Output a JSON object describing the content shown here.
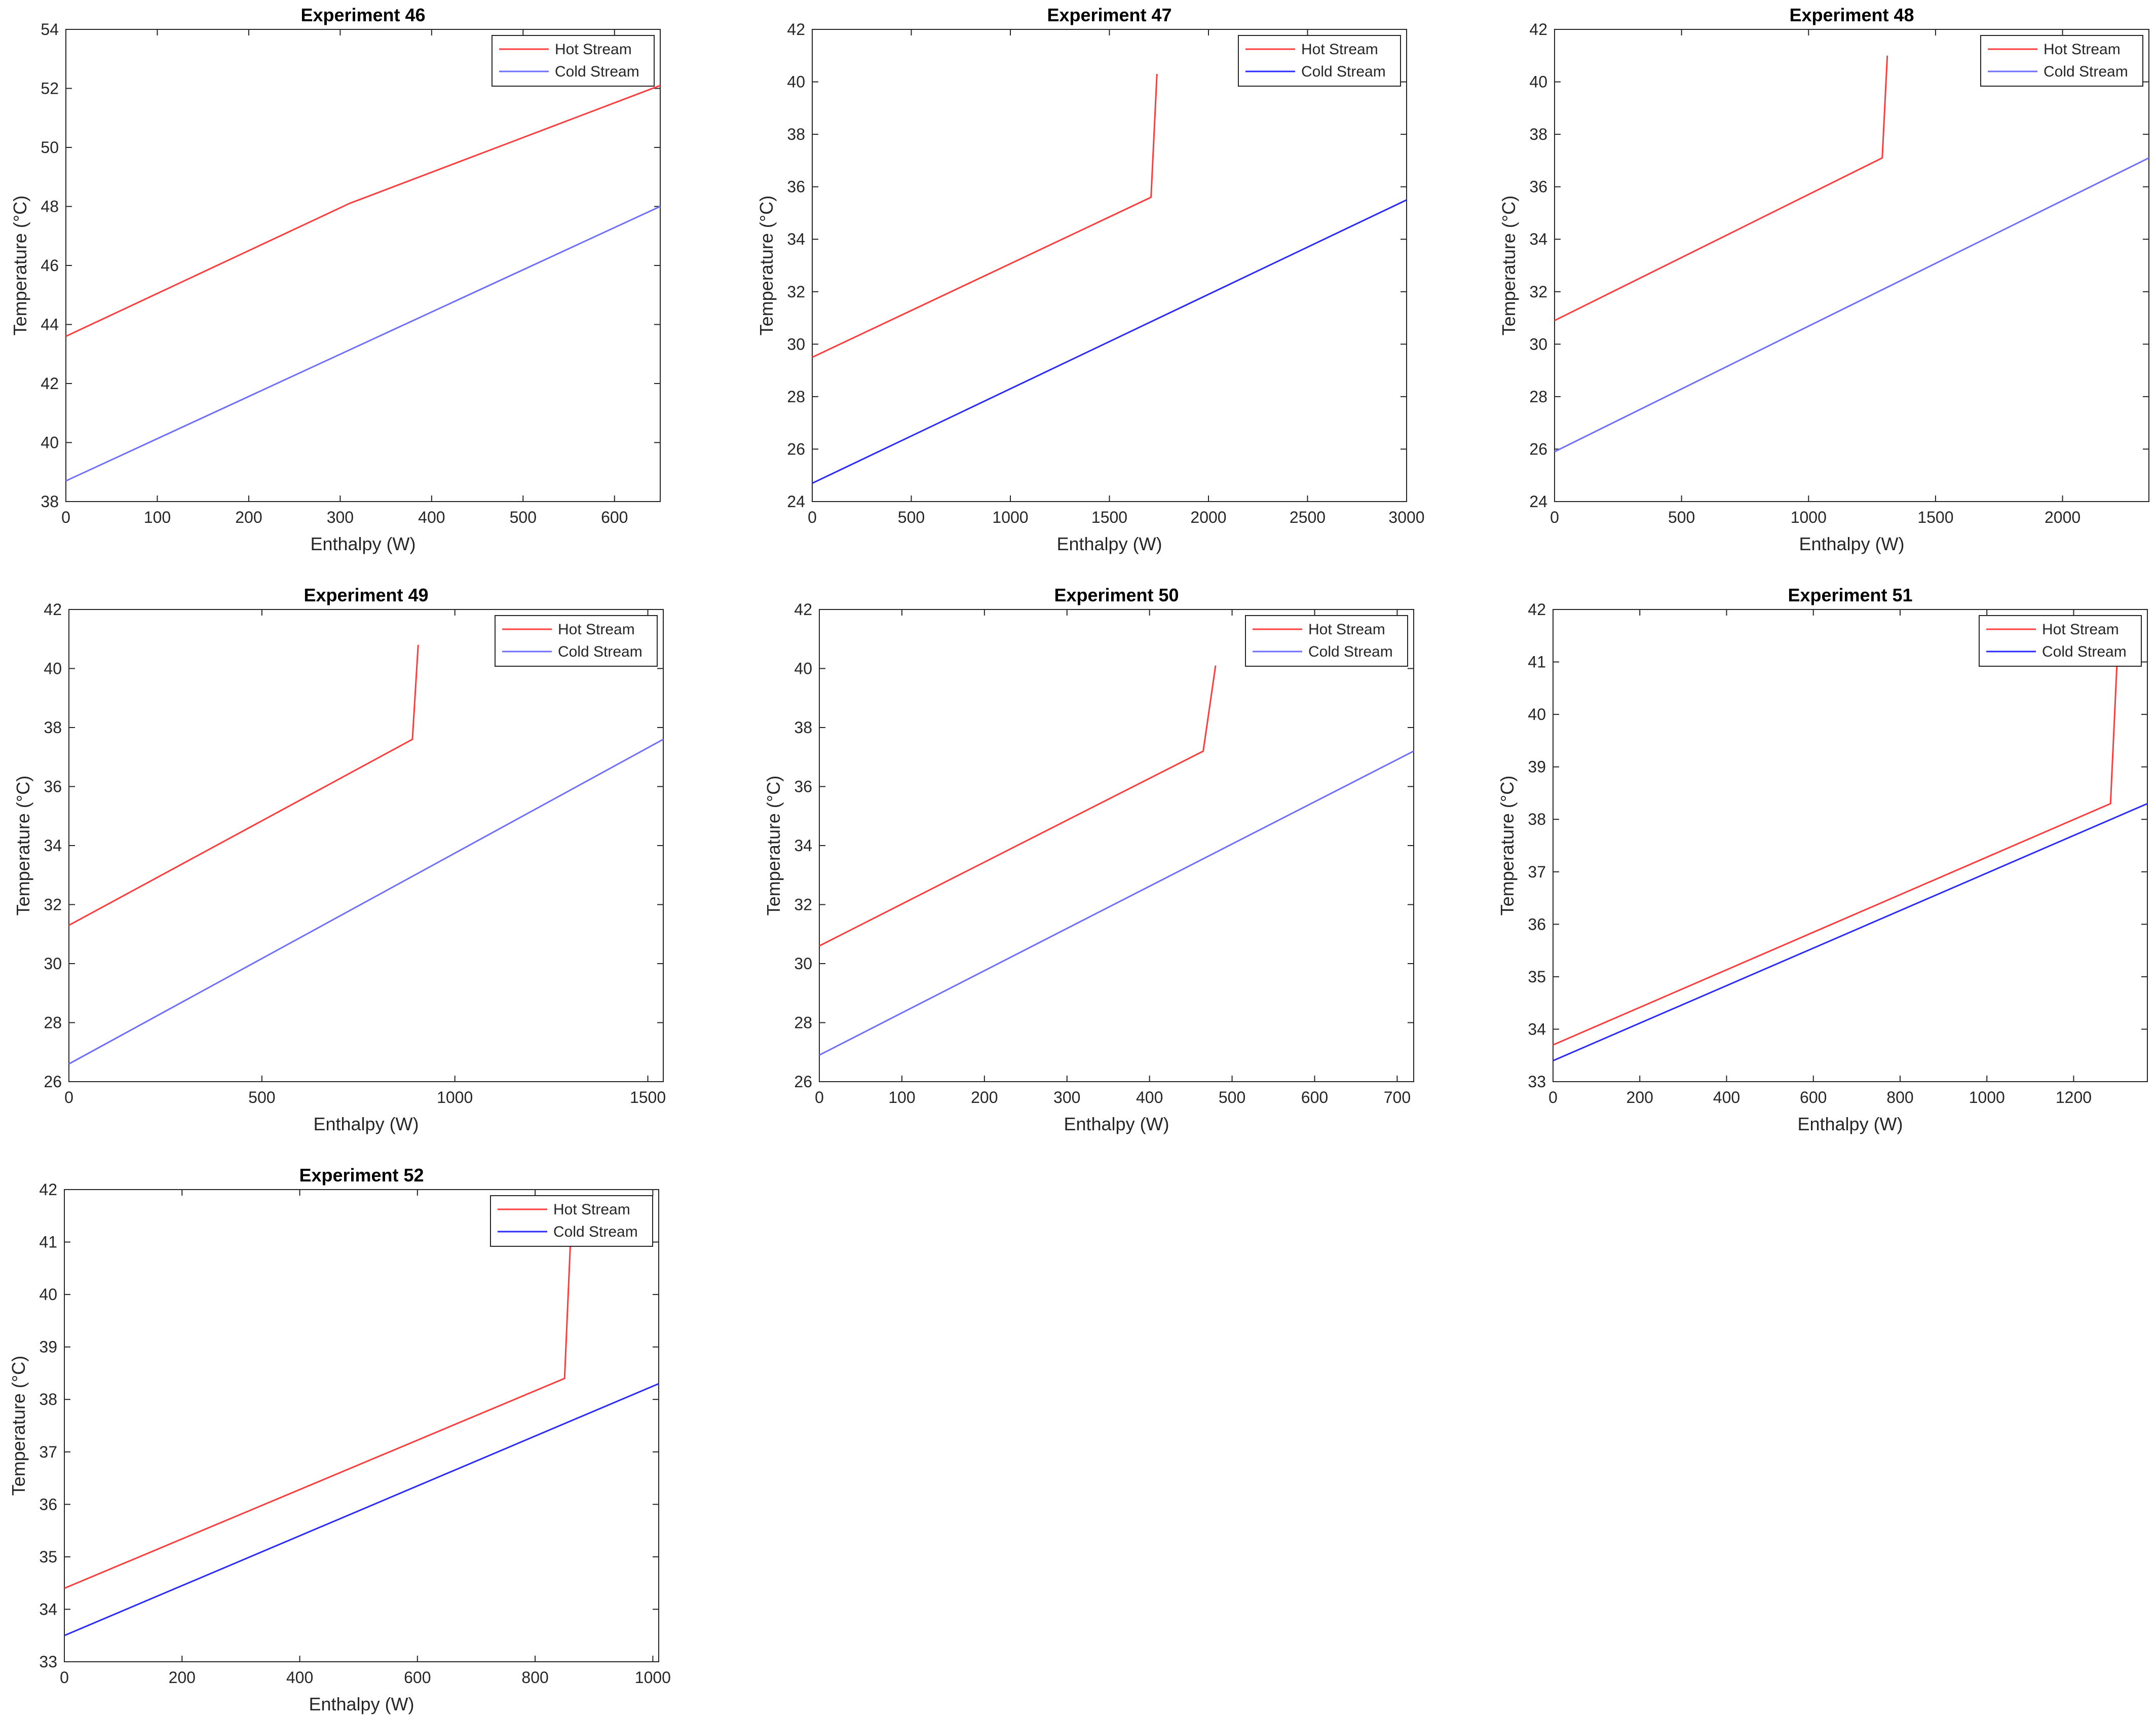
{
  "figure": {
    "series_names": [
      "Hot Stream",
      "Cold Stream"
    ],
    "colors": {
      "hot": "#ff3b3b",
      "cold": "#6f6fff",
      "cold_dark": "#2a2aff",
      "axis": "#262626"
    }
  },
  "chart_data": [
    {
      "type": "line",
      "title": "Experiment 46",
      "xlabel": "Enthalpy (W)",
      "ylabel": "Temperature (°C)",
      "xlim": [
        0,
        650
      ],
      "ylim": [
        38,
        54
      ],
      "xticks": [
        0,
        100,
        200,
        300,
        400,
        500,
        600
      ],
      "yticks": [
        38,
        40,
        42,
        44,
        46,
        48,
        50,
        52,
        54
      ],
      "legend": "top-right",
      "cold_style": "light",
      "series": [
        {
          "name": "Hot Stream",
          "x": [
            0,
            310,
            650
          ],
          "y": [
            43.6,
            48.1,
            52.1
          ]
        },
        {
          "name": "Cold Stream",
          "x": [
            0,
            650
          ],
          "y": [
            38.7,
            48.0
          ]
        }
      ]
    },
    {
      "type": "line",
      "title": "Experiment 47",
      "xlabel": "Enthalpy (W)",
      "ylabel": "Temperature (°C)",
      "xlim": [
        0,
        3000
      ],
      "ylim": [
        24,
        42
      ],
      "xticks": [
        0,
        500,
        1000,
        1500,
        2000,
        2500,
        3000
      ],
      "yticks": [
        24,
        26,
        28,
        30,
        32,
        34,
        36,
        38,
        40,
        42
      ],
      "legend": "top-right",
      "cold_style": "dark",
      "series": [
        {
          "name": "Hot Stream",
          "x": [
            0,
            1710,
            1740
          ],
          "y": [
            29.5,
            35.6,
            40.3
          ]
        },
        {
          "name": "Cold Stream",
          "x": [
            0,
            3000
          ],
          "y": [
            24.7,
            35.5
          ]
        }
      ]
    },
    {
      "type": "line",
      "title": "Experiment 48",
      "xlabel": "Enthalpy (W)",
      "ylabel": "Temperature (°C)",
      "xlim": [
        0,
        2340
      ],
      "ylim": [
        24,
        42
      ],
      "xticks": [
        0,
        500,
        1000,
        1500,
        2000
      ],
      "yticks": [
        24,
        26,
        28,
        30,
        32,
        34,
        36,
        38,
        40,
        42
      ],
      "legend": "top-right",
      "cold_style": "light",
      "series": [
        {
          "name": "Hot Stream",
          "x": [
            0,
            1290,
            1310
          ],
          "y": [
            30.9,
            37.1,
            41.0
          ]
        },
        {
          "name": "Cold Stream",
          "x": [
            0,
            2340
          ],
          "y": [
            25.9,
            37.1
          ]
        }
      ]
    },
    {
      "type": "line",
      "title": "Experiment 49",
      "xlabel": "Enthalpy (W)",
      "ylabel": "Temperature (°C)",
      "xlim": [
        0,
        1540
      ],
      "ylim": [
        26,
        42
      ],
      "xticks": [
        0,
        500,
        1000,
        1500
      ],
      "yticks": [
        26,
        28,
        30,
        32,
        34,
        36,
        38,
        40,
        42
      ],
      "legend": "top-right",
      "cold_style": "light",
      "series": [
        {
          "name": "Hot Stream",
          "x": [
            0,
            890,
            905
          ],
          "y": [
            31.3,
            37.6,
            40.8
          ]
        },
        {
          "name": "Cold Stream",
          "x": [
            0,
            1540
          ],
          "y": [
            26.6,
            37.6
          ]
        }
      ]
    },
    {
      "type": "line",
      "title": "Experiment 50",
      "xlabel": "Enthalpy (W)",
      "ylabel": "Temperature (°C)",
      "xlim": [
        0,
        720
      ],
      "ylim": [
        26,
        42
      ],
      "xticks": [
        0,
        100,
        200,
        300,
        400,
        500,
        600,
        700
      ],
      "yticks": [
        26,
        28,
        30,
        32,
        34,
        36,
        38,
        40,
        42
      ],
      "legend": "top-right",
      "cold_style": "light",
      "series": [
        {
          "name": "Hot Stream",
          "x": [
            0,
            465,
            480
          ],
          "y": [
            30.6,
            37.2,
            40.1
          ]
        },
        {
          "name": "Cold Stream",
          "x": [
            0,
            720
          ],
          "y": [
            26.9,
            37.2
          ]
        }
      ]
    },
    {
      "type": "line",
      "title": "Experiment 51",
      "xlabel": "Enthalpy (W)",
      "ylabel": "Temperature (°C)",
      "xlim": [
        0,
        1370
      ],
      "ylim": [
        33,
        42
      ],
      "xticks": [
        0,
        200,
        400,
        600,
        800,
        1000,
        1200
      ],
      "yticks": [
        33,
        34,
        35,
        36,
        37,
        38,
        39,
        40,
        41,
        42
      ],
      "legend": "top-right",
      "cold_style": "dark",
      "series": [
        {
          "name": "Hot Stream",
          "x": [
            0,
            1285,
            1300
          ],
          "y": [
            33.7,
            38.3,
            41.0
          ]
        },
        {
          "name": "Cold Stream",
          "x": [
            0,
            1370
          ],
          "y": [
            33.4,
            38.3
          ]
        }
      ]
    },
    {
      "type": "line",
      "title": "Experiment 52",
      "xlabel": "Enthalpy (W)",
      "ylabel": "Temperature (°C)",
      "xlim": [
        0,
        1010
      ],
      "ylim": [
        33,
        42
      ],
      "xticks": [
        0,
        200,
        400,
        600,
        800,
        1000
      ],
      "yticks": [
        33,
        34,
        35,
        36,
        37,
        38,
        39,
        40,
        41,
        42
      ],
      "legend": "top-right",
      "cold_style": "dark",
      "series": [
        {
          "name": "Hot Stream",
          "x": [
            0,
            850,
            860
          ],
          "y": [
            34.4,
            38.4,
            41.0
          ]
        },
        {
          "name": "Cold Stream",
          "x": [
            0,
            1010
          ],
          "y": [
            33.5,
            38.3
          ]
        }
      ]
    }
  ]
}
